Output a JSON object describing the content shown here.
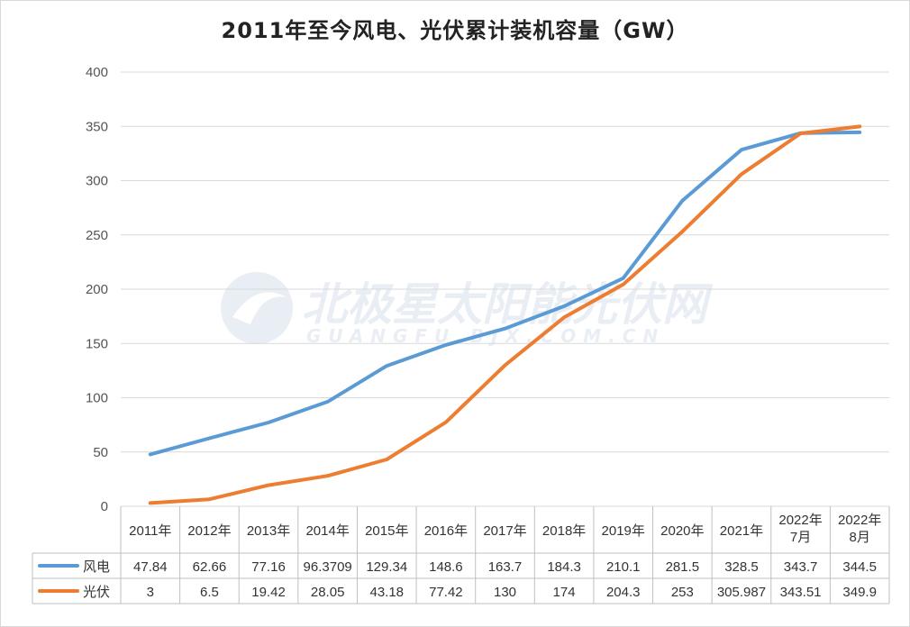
{
  "chart_data": {
    "type": "line",
    "title": "2011年至今风电、光伏累计装机容量（GW）",
    "categories": [
      [
        "2011年"
      ],
      [
        "2012年"
      ],
      [
        "2013年"
      ],
      [
        "2014年"
      ],
      [
        "2015年"
      ],
      [
        "2016年"
      ],
      [
        "2017年"
      ],
      [
        "2018年"
      ],
      [
        "2019年"
      ],
      [
        "2020年"
      ],
      [
        "2021年"
      ],
      [
        "2022年",
        "7月"
      ],
      [
        "2022年",
        "8月"
      ]
    ],
    "yticks": [
      "0",
      "50",
      "100",
      "150",
      "200",
      "250",
      "300",
      "350",
      "400"
    ],
    "ylim": [
      0,
      400
    ],
    "grid": true,
    "series": [
      {
        "name": "风电",
        "color": "#5b9bd5",
        "values": [
          47.84,
          62.66,
          77.16,
          96.3709,
          129.34,
          148.6,
          163.7,
          184.3,
          210.1,
          281.5,
          328.5,
          343.7,
          344.5
        ],
        "labels": [
          "47.84",
          "62.66",
          "77.16",
          "96.3709",
          "129.34",
          "148.6",
          "163.7",
          "184.3",
          "210.1",
          "281.5",
          "328.5",
          "343.7",
          "344.5"
        ]
      },
      {
        "name": "光伏",
        "color": "#ed7d31",
        "values": [
          3,
          6.5,
          19.42,
          28.05,
          43.18,
          77.42,
          130,
          174,
          204.3,
          253,
          305.987,
          343.51,
          349.9
        ],
        "labels": [
          "3",
          "6.5",
          "19.42",
          "28.05",
          "43.18",
          "77.42",
          "130",
          "174",
          "204.3",
          "253",
          "305.987",
          "343.51",
          "349.9"
        ]
      }
    ],
    "legend_position": "data-table"
  },
  "watermark": {
    "cn": "北极星太阳能光伏网",
    "en": "GUANGFU.BJX.COM.CN"
  }
}
